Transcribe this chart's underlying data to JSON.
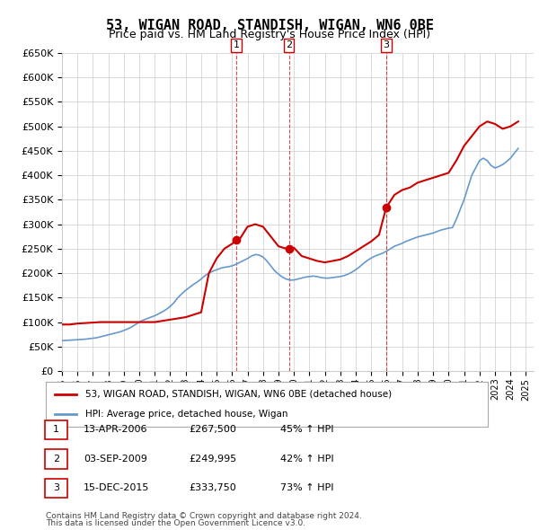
{
  "title": "53, WIGAN ROAD, STANDISH, WIGAN, WN6 0BE",
  "subtitle": "Price paid vs. HM Land Registry's House Price Index (HPI)",
  "ylabel": "",
  "ylim": [
    0,
    650000
  ],
  "yticks": [
    0,
    50000,
    100000,
    150000,
    200000,
    250000,
    300000,
    350000,
    400000,
    450000,
    500000,
    550000,
    600000,
    650000
  ],
  "xlim_start": 1995.0,
  "xlim_end": 2025.5,
  "background_color": "#ffffff",
  "grid_color": "#cccccc",
  "hpi_color": "#6699cc",
  "price_color": "#cc0000",
  "transaction_marker_color": "#cc0000",
  "transactions": [
    {
      "num": 1,
      "date_dec": 2006.28,
      "price": 267500,
      "label": "1",
      "date_str": "13-APR-2006",
      "price_str": "£267,500",
      "hpi_str": "45% ↑ HPI"
    },
    {
      "num": 2,
      "date_dec": 2009.67,
      "price": 249995,
      "label": "2",
      "date_str": "03-SEP-2009",
      "price_str": "£249,995",
      "hpi_str": "42% ↑ HPI"
    },
    {
      "num": 3,
      "date_dec": 2015.96,
      "price": 333750,
      "label": "3",
      "date_str": "15-DEC-2015",
      "price_str": "£333,750",
      "hpi_str": "73% ↑ HPI"
    }
  ],
  "legend_label_price": "53, WIGAN ROAD, STANDISH, WIGAN, WN6 0BE (detached house)",
  "legend_label_hpi": "HPI: Average price, detached house, Wigan",
  "footer_line1": "Contains HM Land Registry data © Crown copyright and database right 2024.",
  "footer_line2": "This data is licensed under the Open Government Licence v3.0.",
  "hpi_data_x": [
    1995.0,
    1995.25,
    1995.5,
    1995.75,
    1996.0,
    1996.25,
    1996.5,
    1996.75,
    1997.0,
    1997.25,
    1997.5,
    1997.75,
    1998.0,
    1998.25,
    1998.5,
    1998.75,
    1999.0,
    1999.25,
    1999.5,
    1999.75,
    2000.0,
    2000.25,
    2000.5,
    2000.75,
    2001.0,
    2001.25,
    2001.5,
    2001.75,
    2002.0,
    2002.25,
    2002.5,
    2002.75,
    2003.0,
    2003.25,
    2003.5,
    2003.75,
    2004.0,
    2004.25,
    2004.5,
    2004.75,
    2005.0,
    2005.25,
    2005.5,
    2005.75,
    2006.0,
    2006.25,
    2006.5,
    2006.75,
    2007.0,
    2007.25,
    2007.5,
    2007.75,
    2008.0,
    2008.25,
    2008.5,
    2008.75,
    2009.0,
    2009.25,
    2009.5,
    2009.75,
    2010.0,
    2010.25,
    2010.5,
    2010.75,
    2011.0,
    2011.25,
    2011.5,
    2011.75,
    2012.0,
    2012.25,
    2012.5,
    2012.75,
    2013.0,
    2013.25,
    2013.5,
    2013.75,
    2014.0,
    2014.25,
    2014.5,
    2014.75,
    2015.0,
    2015.25,
    2015.5,
    2015.75,
    2016.0,
    2016.25,
    2016.5,
    2016.75,
    2017.0,
    2017.25,
    2017.5,
    2017.75,
    2018.0,
    2018.25,
    2018.5,
    2018.75,
    2019.0,
    2019.25,
    2019.5,
    2019.75,
    2020.0,
    2020.25,
    2020.5,
    2020.75,
    2021.0,
    2021.25,
    2021.5,
    2021.75,
    2022.0,
    2022.25,
    2022.5,
    2022.75,
    2023.0,
    2023.25,
    2023.5,
    2023.75,
    2024.0,
    2024.25,
    2024.5
  ],
  "hpi_data_y": [
    62000,
    62500,
    63000,
    63500,
    64000,
    64500,
    65000,
    66000,
    67000,
    68000,
    70000,
    72000,
    74000,
    76000,
    78000,
    80000,
    83000,
    86000,
    90000,
    95000,
    100000,
    104000,
    107000,
    110000,
    113000,
    117000,
    121000,
    126000,
    132000,
    140000,
    150000,
    158000,
    165000,
    171000,
    177000,
    182000,
    188000,
    195000,
    200000,
    204000,
    207000,
    210000,
    212000,
    213000,
    215000,
    218000,
    222000,
    226000,
    230000,
    235000,
    238000,
    237000,
    233000,
    225000,
    215000,
    205000,
    198000,
    192000,
    188000,
    186000,
    186000,
    188000,
    190000,
    192000,
    193000,
    194000,
    193000,
    191000,
    190000,
    190000,
    191000,
    192000,
    193000,
    195000,
    198000,
    202000,
    207000,
    213000,
    220000,
    226000,
    231000,
    235000,
    238000,
    241000,
    245000,
    250000,
    255000,
    258000,
    261000,
    265000,
    268000,
    271000,
    274000,
    276000,
    278000,
    280000,
    282000,
    285000,
    288000,
    290000,
    292000,
    293000,
    310000,
    330000,
    350000,
    375000,
    400000,
    415000,
    430000,
    435000,
    430000,
    420000,
    415000,
    418000,
    422000,
    428000,
    435000,
    445000,
    455000
  ],
  "price_data_x": [
    1995.0,
    1995.5,
    1996.0,
    1996.5,
    1997.0,
    1997.5,
    1998.0,
    1999.0,
    2000.0,
    2001.0,
    2002.0,
    2003.0,
    2004.0,
    2004.5,
    2005.0,
    2005.5,
    2006.0,
    2006.28,
    2006.5,
    2007.0,
    2007.5,
    2008.0,
    2008.5,
    2009.0,
    2009.5,
    2009.67,
    2010.0,
    2010.5,
    2011.0,
    2011.5,
    2012.0,
    2012.5,
    2013.0,
    2013.5,
    2014.0,
    2014.5,
    2015.0,
    2015.5,
    2015.96,
    2016.5,
    2017.0,
    2017.5,
    2018.0,
    2018.5,
    2019.0,
    2019.5,
    2020.0,
    2020.5,
    2021.0,
    2021.5,
    2022.0,
    2022.5,
    2023.0,
    2023.5,
    2024.0,
    2024.5
  ],
  "price_data_y": [
    95000,
    95000,
    97000,
    98000,
    99000,
    100000,
    100000,
    100000,
    100000,
    100000,
    105000,
    110000,
    120000,
    200000,
    230000,
    250000,
    260000,
    267500,
    270000,
    295000,
    300000,
    295000,
    275000,
    255000,
    250000,
    249995,
    252000,
    235000,
    230000,
    225000,
    222000,
    225000,
    228000,
    235000,
    245000,
    255000,
    265000,
    278000,
    333750,
    360000,
    370000,
    375000,
    385000,
    390000,
    395000,
    400000,
    405000,
    430000,
    460000,
    480000,
    500000,
    510000,
    505000,
    495000,
    500000,
    510000
  ]
}
